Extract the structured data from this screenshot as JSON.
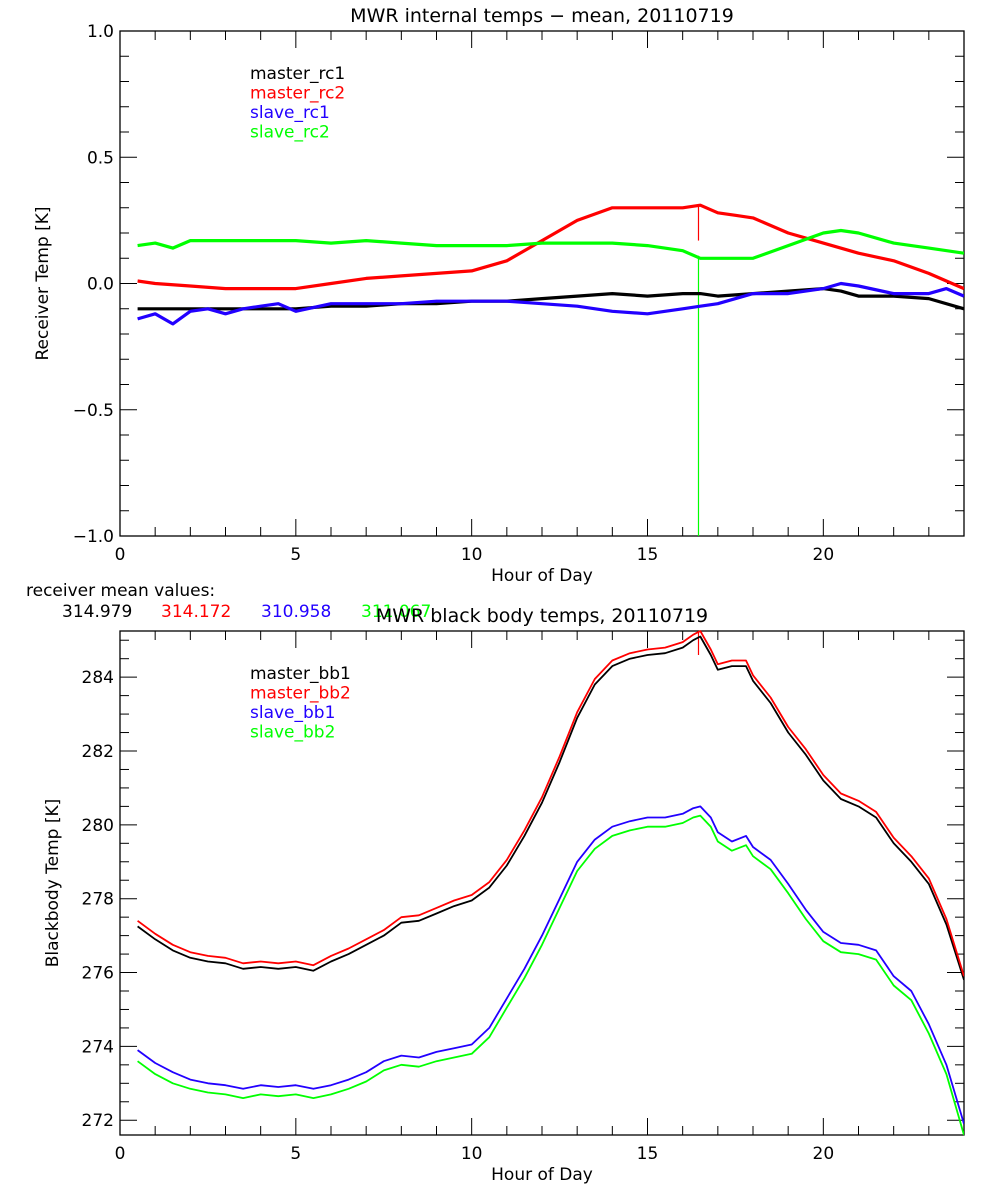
{
  "chart_data": [
    {
      "type": "line",
      "title": "MWR internal temps − mean, 20110719",
      "xlabel": "Hour of Day",
      "ylabel": "Receiver Temp [K]",
      "xlim": [
        0,
        24
      ],
      "ylim": [
        -1.0,
        1.0
      ],
      "grid": false,
      "legend_placement": "top-left",
      "xticks": [
        0,
        5,
        10,
        15,
        20
      ],
      "xtick_labels": [
        "0",
        "5",
        "10",
        "15",
        "20"
      ],
      "yticks": [
        -1.0,
        -0.5,
        0.0,
        0.5,
        1.0
      ],
      "ytick_labels": [
        "−1.0",
        "−0.5",
        "0.0",
        "0.5",
        "1.0"
      ],
      "x_minor_step": 1,
      "y_minor_step": 0.1,
      "series": [
        {
          "name": "master_rc1",
          "color": "#000000",
          "x": [
            0.5,
            1,
            2,
            3,
            4,
            5,
            6,
            7,
            8,
            9,
            10,
            11,
            12,
            13,
            14,
            15,
            16,
            16.5,
            17,
            18,
            19,
            20,
            20.5,
            21,
            22,
            23,
            24
          ],
          "y": [
            -0.1,
            -0.1,
            -0.1,
            -0.1,
            -0.1,
            -0.1,
            -0.09,
            -0.09,
            -0.08,
            -0.08,
            -0.07,
            -0.07,
            -0.06,
            -0.05,
            -0.04,
            -0.05,
            -0.04,
            -0.04,
            -0.05,
            -0.04,
            -0.03,
            -0.02,
            -0.03,
            -0.05,
            -0.05,
            -0.06,
            -0.1
          ]
        },
        {
          "name": "master_rc2",
          "color": "#ff0000",
          "x": [
            0.5,
            1,
            2,
            3,
            4,
            5,
            6,
            7,
            8,
            9,
            10,
            11,
            12,
            13,
            14,
            15,
            16,
            16.5,
            17,
            17.5,
            18,
            19,
            20,
            21,
            22,
            23,
            24
          ],
          "y": [
            0.01,
            0.0,
            -0.01,
            -0.02,
            -0.02,
            -0.02,
            0.0,
            0.02,
            0.03,
            0.04,
            0.05,
            0.09,
            0.17,
            0.25,
            0.3,
            0.3,
            0.3,
            0.31,
            0.28,
            0.27,
            0.26,
            0.2,
            0.16,
            0.12,
            0.09,
            0.04,
            -0.02
          ]
        },
        {
          "name": "slave_rc1",
          "color": "#2200ff",
          "x": [
            0.5,
            1,
            1.5,
            2,
            2.5,
            3,
            3.5,
            4,
            4.5,
            5,
            6,
            7,
            8,
            9,
            10,
            11,
            12,
            13,
            14,
            15,
            16,
            16.5,
            17,
            18,
            19,
            20,
            20.5,
            21,
            22,
            23,
            23.5,
            24
          ],
          "y": [
            -0.14,
            -0.12,
            -0.16,
            -0.11,
            -0.1,
            -0.12,
            -0.1,
            -0.09,
            -0.08,
            -0.11,
            -0.08,
            -0.08,
            -0.08,
            -0.07,
            -0.07,
            -0.07,
            -0.08,
            -0.09,
            -0.11,
            -0.12,
            -0.1,
            -0.09,
            -0.08,
            -0.04,
            -0.04,
            -0.02,
            0.0,
            -0.01,
            -0.04,
            -0.04,
            -0.02,
            -0.05
          ]
        },
        {
          "name": "slave_rc2",
          "color": "#00ff00",
          "x": [
            0.5,
            1,
            1.5,
            2,
            3,
            4,
            5,
            6,
            7,
            8,
            9,
            10,
            11,
            12,
            13,
            14,
            15,
            16,
            16.5,
            17,
            18,
            19,
            20,
            20.5,
            21,
            22,
            23,
            24
          ],
          "y": [
            0.15,
            0.16,
            0.14,
            0.17,
            0.17,
            0.17,
            0.17,
            0.16,
            0.17,
            0.16,
            0.15,
            0.15,
            0.15,
            0.16,
            0.16,
            0.16,
            0.15,
            0.13,
            0.1,
            0.1,
            0.1,
            0.15,
            0.2,
            0.21,
            0.2,
            0.16,
            0.14,
            0.12
          ]
        }
      ],
      "annotations": [
        {
          "type": "vline",
          "x": 16.45,
          "y_from": -1.0,
          "y_to": 0.11,
          "color": "#00ff00"
        },
        {
          "type": "vline",
          "x": 16.45,
          "y_from": 0.17,
          "y_to": 0.31,
          "color": "#ff0000"
        }
      ],
      "footer": {
        "label": "receiver mean values:",
        "values": [
          {
            "text": "314.979",
            "color": "#000000"
          },
          {
            "text": "314.172",
            "color": "#ff0000"
          },
          {
            "text": "310.958",
            "color": "#2200ff"
          },
          {
            "text": "311.067",
            "color": "#00ff00"
          }
        ]
      }
    },
    {
      "type": "line",
      "title": "MWR black body temps, 20110719",
      "xlabel": "Hour of Day",
      "ylabel": "Blackbody Temp [K]",
      "xlim": [
        0,
        24
      ],
      "ylim": [
        271.6,
        285.25
      ],
      "grid": false,
      "legend_placement": "top-left",
      "xticks": [
        0,
        5,
        10,
        15,
        20
      ],
      "xtick_labels": [
        "0",
        "5",
        "10",
        "15",
        "20"
      ],
      "yticks": [
        272,
        274,
        276,
        278,
        280,
        282,
        284
      ],
      "ytick_labels": [
        "272",
        "274",
        "276",
        "278",
        "280",
        "282",
        "284"
      ],
      "x_minor_step": 1,
      "y_minor_step": 0.5,
      "series": [
        {
          "name": "master_bb1",
          "color": "#000000",
          "x": [
            0.5,
            1,
            1.5,
            2,
            2.5,
            3,
            3.5,
            4,
            4.5,
            5,
            5.5,
            6,
            6.5,
            7,
            7.5,
            8,
            8.5,
            9,
            9.5,
            10,
            10.5,
            11,
            11.5,
            12,
            12.5,
            13,
            13.5,
            14,
            14.5,
            15,
            15.5,
            16,
            16.3,
            16.5,
            16.8,
            17,
            17.4,
            17.8,
            18,
            18.5,
            19,
            19.5,
            20,
            20.5,
            21,
            21.5,
            22,
            22.5,
            23,
            23.5,
            24
          ],
          "y": [
            277.25,
            276.9,
            276.6,
            276.4,
            276.3,
            276.25,
            276.1,
            276.15,
            276.1,
            276.15,
            276.05,
            276.3,
            276.5,
            276.75,
            277.0,
            277.35,
            277.4,
            277.6,
            277.8,
            277.95,
            278.3,
            278.9,
            279.7,
            280.6,
            281.7,
            282.9,
            283.8,
            284.3,
            284.5,
            284.6,
            284.65,
            284.8,
            285.0,
            285.1,
            284.6,
            284.2,
            284.3,
            284.3,
            283.9,
            283.3,
            282.5,
            281.9,
            281.2,
            280.7,
            280.5,
            280.2,
            279.5,
            279.0,
            278.4,
            277.3,
            275.8
          ]
        },
        {
          "name": "master_bb2",
          "color": "#ff0000",
          "x": [
            0.5,
            1,
            1.5,
            2,
            2.5,
            3,
            3.5,
            4,
            4.5,
            5,
            5.5,
            6,
            6.5,
            7,
            7.5,
            8,
            8.5,
            9,
            9.5,
            10,
            10.5,
            11,
            11.5,
            12,
            12.5,
            13,
            13.5,
            14,
            14.5,
            15,
            15.5,
            16,
            16.3,
            16.5,
            16.8,
            17,
            17.4,
            17.8,
            18,
            18.5,
            19,
            19.5,
            20,
            20.5,
            21,
            21.5,
            22,
            22.5,
            23,
            23.5,
            24
          ],
          "y": [
            277.4,
            277.05,
            276.75,
            276.55,
            276.45,
            276.4,
            276.25,
            276.3,
            276.25,
            276.3,
            276.2,
            276.45,
            276.65,
            276.9,
            277.15,
            277.5,
            277.55,
            277.75,
            277.95,
            278.1,
            278.45,
            279.05,
            279.85,
            280.75,
            281.85,
            283.05,
            283.95,
            284.45,
            284.65,
            284.75,
            284.8,
            284.95,
            285.15,
            285.25,
            284.75,
            284.35,
            284.45,
            284.45,
            284.05,
            283.45,
            282.65,
            282.05,
            281.35,
            280.85,
            280.65,
            280.35,
            279.65,
            279.15,
            278.55,
            277.45,
            275.9
          ]
        },
        {
          "name": "slave_bb1",
          "color": "#2200ff",
          "x": [
            0.5,
            1,
            1.5,
            2,
            2.5,
            3,
            3.5,
            4,
            4.5,
            5,
            5.5,
            6,
            6.5,
            7,
            7.5,
            8,
            8.5,
            9,
            9.5,
            10,
            10.5,
            11,
            11.5,
            12,
            12.5,
            13,
            13.5,
            14,
            14.5,
            15,
            15.5,
            16,
            16.3,
            16.5,
            16.8,
            17,
            17.4,
            17.8,
            18,
            18.5,
            19,
            19.5,
            20,
            20.5,
            21,
            21.5,
            22,
            22.5,
            23,
            23.5,
            24
          ],
          "y": [
            273.9,
            273.55,
            273.3,
            273.1,
            273.0,
            272.95,
            272.85,
            272.95,
            272.9,
            272.95,
            272.85,
            272.95,
            273.1,
            273.3,
            273.6,
            273.75,
            273.7,
            273.85,
            273.95,
            274.05,
            274.5,
            275.3,
            276.1,
            277.0,
            278.0,
            279.0,
            279.6,
            279.95,
            280.1,
            280.2,
            280.2,
            280.3,
            280.45,
            280.5,
            280.2,
            279.8,
            279.55,
            279.7,
            279.4,
            279.05,
            278.4,
            277.7,
            277.1,
            276.8,
            276.75,
            276.6,
            275.9,
            275.5,
            274.6,
            273.5,
            271.9
          ]
        },
        {
          "name": "slave_bb2",
          "color": "#00ff00",
          "x": [
            0.5,
            1,
            1.5,
            2,
            2.5,
            3,
            3.5,
            4,
            4.5,
            5,
            5.5,
            6,
            6.5,
            7,
            7.5,
            8,
            8.5,
            9,
            9.5,
            10,
            10.5,
            11,
            11.5,
            12,
            12.5,
            13,
            13.5,
            14,
            14.5,
            15,
            15.5,
            16,
            16.3,
            16.5,
            16.8,
            17,
            17.4,
            17.8,
            18,
            18.5,
            19,
            19.5,
            20,
            20.5,
            21,
            21.5,
            22,
            22.5,
            23,
            23.5,
            24
          ],
          "y": [
            273.6,
            273.25,
            273.0,
            272.85,
            272.75,
            272.7,
            272.6,
            272.7,
            272.65,
            272.7,
            272.6,
            272.7,
            272.85,
            273.05,
            273.35,
            273.5,
            273.45,
            273.6,
            273.7,
            273.8,
            274.25,
            275.05,
            275.85,
            276.75,
            277.75,
            278.75,
            279.35,
            279.7,
            279.85,
            279.95,
            279.95,
            280.05,
            280.2,
            280.25,
            279.95,
            279.55,
            279.3,
            279.45,
            279.15,
            278.8,
            278.15,
            277.45,
            276.85,
            276.55,
            276.5,
            276.35,
            275.65,
            275.25,
            274.35,
            273.25,
            271.6
          ]
        }
      ],
      "annotations": [
        {
          "type": "vline",
          "x": 16.45,
          "y_from": 284.6,
          "y_to": 285.25,
          "color": "#ff0000"
        }
      ]
    }
  ]
}
